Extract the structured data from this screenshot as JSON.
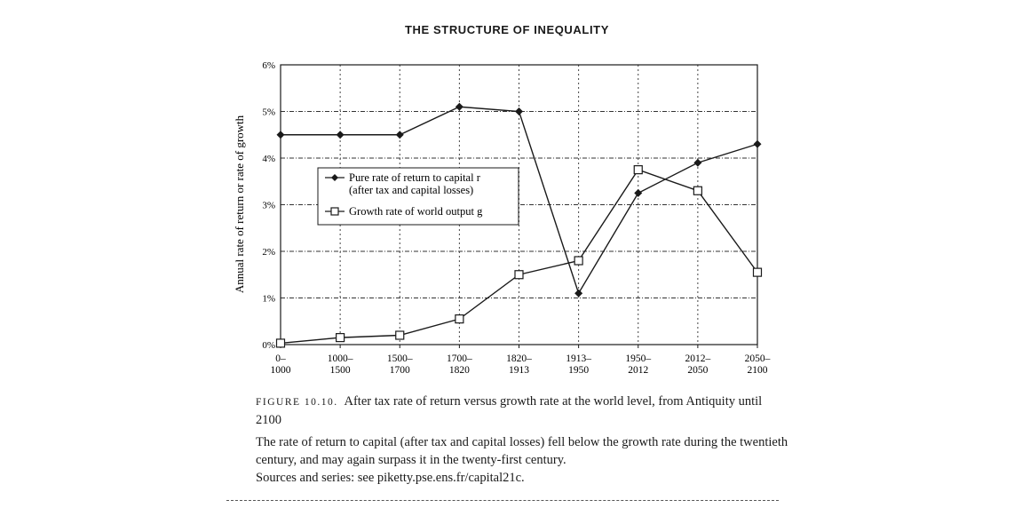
{
  "page": {
    "header": "THE STRUCTURE OF INEQUALITY"
  },
  "caption": {
    "figure_label": "FIGURE 10.10.",
    "title": "After tax rate of return versus growth rate at the world level, from Antiquity until 2100",
    "description": "The rate of return to capital (after tax and capital losses) fell below the growth rate during the twentieth century, and may again surpass it in the twenty-first century.",
    "sources": "Sources and series: see piketty.pse.ens.fr/capital21c."
  },
  "chart_data": {
    "type": "line",
    "title": "",
    "xlabel": "",
    "ylabel": "Annual rate of return or rate of growth",
    "categories": [
      [
        "0–",
        "1000"
      ],
      [
        "1000–",
        "1500"
      ],
      [
        "1500–",
        "1700"
      ],
      [
        "1700–",
        "1820"
      ],
      [
        "1820–",
        "1913"
      ],
      [
        "1913–",
        "1950"
      ],
      [
        "1950–",
        "2012"
      ],
      [
        "2012–",
        "2050"
      ],
      [
        "2050–",
        "2100"
      ]
    ],
    "ylim": [
      0,
      6
    ],
    "yticks": [
      0,
      1,
      2,
      3,
      4,
      5,
      6
    ],
    "ytick_labels": [
      "0%",
      "1%",
      "2%",
      "3%",
      "4%",
      "5%",
      "6%"
    ],
    "grid": true,
    "legend_position": "center-left",
    "series": [
      {
        "name": "Pure rate of return to capital r (after tax and capital losses)",
        "legend_line1": "Pure rate of return to capital r",
        "legend_line2": "(after tax and capital losses)",
        "marker": "diamond-filled",
        "color": "#1a1a1a",
        "values": [
          4.5,
          4.5,
          4.5,
          5.1,
          5.0,
          1.1,
          3.25,
          3.9,
          4.3
        ]
      },
      {
        "name": "Growth rate of world output g",
        "legend_line1": "Growth rate of world output g",
        "marker": "square-open",
        "color": "#1a1a1a",
        "values": [
          0.03,
          0.15,
          0.2,
          0.55,
          1.5,
          1.8,
          3.75,
          3.3,
          1.55
        ]
      }
    ]
  }
}
